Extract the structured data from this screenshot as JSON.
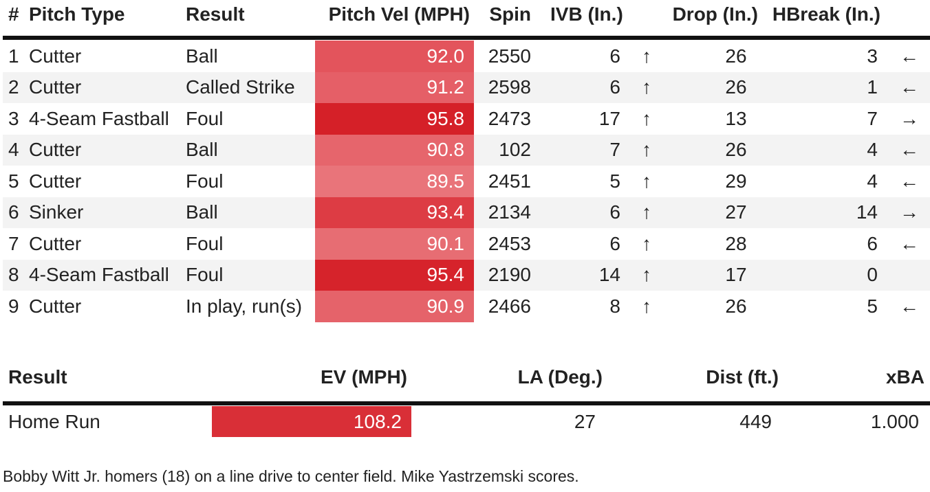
{
  "pitches": {
    "headers": {
      "num": "#",
      "pitch_type": "Pitch Type",
      "result": "Result",
      "velocity": "Pitch Vel (MPH)",
      "spin": "Spin",
      "ivb": "IVB (In.)",
      "drop": "Drop (In.)",
      "hbreak": "HBreak (In.)"
    },
    "rows": [
      {
        "num": "1",
        "type": "Cutter",
        "result": "Ball",
        "vel": "92.0",
        "vel_color": "#e3545c",
        "spin": "2550",
        "ivb": "6",
        "ivb_arrow": "↑",
        "drop": "26",
        "hbreak": "3",
        "hb_arrow": "←"
      },
      {
        "num": "2",
        "type": "Cutter",
        "result": "Called Strike",
        "vel": "91.2",
        "vel_color": "#e55f67",
        "spin": "2598",
        "ivb": "6",
        "ivb_arrow": "↑",
        "drop": "26",
        "hbreak": "1",
        "hb_arrow": "←"
      },
      {
        "num": "3",
        "type": "4-Seam Fastball",
        "result": "Foul",
        "vel": "95.8",
        "vel_color": "#d52028",
        "spin": "2473",
        "ivb": "17",
        "ivb_arrow": "↑",
        "drop": "13",
        "hbreak": "7",
        "hb_arrow": "→"
      },
      {
        "num": "4",
        "type": "Cutter",
        "result": "Ball",
        "vel": "90.8",
        "vel_color": "#e6656c",
        "spin": "102",
        "ivb": "7",
        "ivb_arrow": "↑",
        "drop": "26",
        "hbreak": "4",
        "hb_arrow": "←"
      },
      {
        "num": "5",
        "type": "Cutter",
        "result": "Foul",
        "vel": "89.5",
        "vel_color": "#e9747a",
        "spin": "2451",
        "ivb": "5",
        "ivb_arrow": "↑",
        "drop": "29",
        "hbreak": "4",
        "hb_arrow": "←"
      },
      {
        "num": "6",
        "type": "Sinker",
        "result": "Ball",
        "vel": "93.4",
        "vel_color": "#dd3c44",
        "spin": "2134",
        "ivb": "6",
        "ivb_arrow": "↑",
        "drop": "27",
        "hbreak": "14",
        "hb_arrow": "→"
      },
      {
        "num": "7",
        "type": "Cutter",
        "result": "Foul",
        "vel": "90.1",
        "vel_color": "#e76d73",
        "spin": "2453",
        "ivb": "6",
        "ivb_arrow": "↑",
        "drop": "28",
        "hbreak": "6",
        "hb_arrow": "←"
      },
      {
        "num": "8",
        "type": "4-Seam Fastball",
        "result": "Foul",
        "vel": "95.4",
        "vel_color": "#d6232b",
        "spin": "2190",
        "ivb": "14",
        "ivb_arrow": "↑",
        "drop": "17",
        "hbreak": "0",
        "hb_arrow": ""
      },
      {
        "num": "9",
        "type": "Cutter",
        "result": "In play, run(s)",
        "vel": "90.9",
        "vel_color": "#e5636a",
        "spin": "2466",
        "ivb": "8",
        "ivb_arrow": "↑",
        "drop": "26",
        "hbreak": "5",
        "hb_arrow": "←"
      }
    ]
  },
  "batted_ball": {
    "headers": {
      "result": "Result",
      "ev": "EV (MPH)",
      "la": "LA (Deg.)",
      "dist": "Dist (ft.)",
      "xba": "xBA"
    },
    "row": {
      "result": "Home Run",
      "ev": "108.2",
      "ev_color": "#d92f37",
      "la": "27",
      "dist": "449",
      "xba": "1.000"
    }
  },
  "description": "Bobby Witt Jr. homers (18) on a line drive to center field. Mike Yastrzemski scores."
}
